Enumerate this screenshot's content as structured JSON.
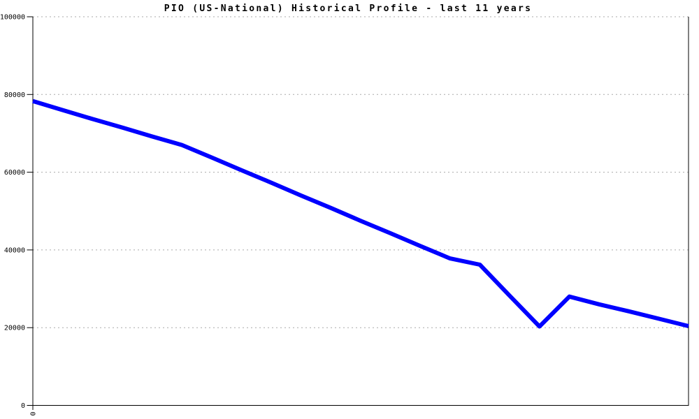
{
  "page": {
    "background_color": "#ffffff"
  },
  "chart_data": {
    "type": "line",
    "title": "PIO (US-National) Historical Profile - last 11 years",
    "xlabel": "",
    "ylabel": "",
    "xlim": [
      0,
      11
    ],
    "ylim": [
      0,
      100000
    ],
    "grid": "horizontal-dotted",
    "legend": "none",
    "x_years": [
      0,
      0.5,
      1,
      1.5,
      2,
      2.5,
      3,
      3.5,
      4,
      4.5,
      5,
      5.5,
      6,
      6.5,
      7,
      7.5,
      8,
      8.5,
      9,
      9.5,
      10,
      10.5,
      11
    ],
    "values": [
      78300,
      76000,
      73700,
      71500,
      69200,
      67000,
      63800,
      60500,
      57300,
      54000,
      50800,
      47500,
      44300,
      41000,
      37800,
      36200,
      28200,
      20300,
      28000,
      26000,
      24200,
      22300,
      20400
    ],
    "y_ticks": [
      0,
      20000,
      40000,
      60000,
      80000,
      100000
    ],
    "y_tick_labels": [
      "0",
      "20000",
      "40000",
      "60000",
      "80000",
      "100000"
    ],
    "x_tick_positions": [
      0
    ],
    "x_tick_labels": [
      "0"
    ],
    "x_tick_labels_rotated": true,
    "line_color": "#0000ff",
    "line_width": 6,
    "grid_color": "#aaaaaa",
    "axis_color": "#000000",
    "text_color": "#000000"
  }
}
